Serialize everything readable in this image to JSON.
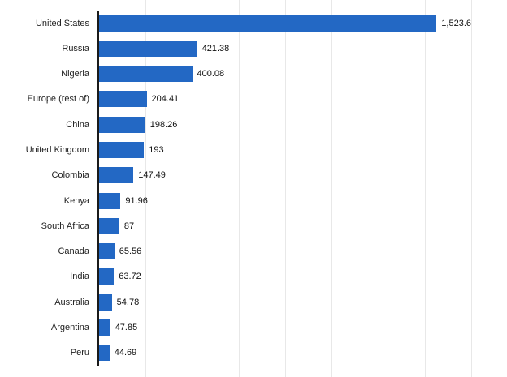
{
  "chart_data": {
    "type": "bar",
    "orientation": "horizontal",
    "categories": [
      "United States",
      "Russia",
      "Nigeria",
      "Europe (rest of)",
      "China",
      "United Kingdom",
      "Colombia",
      "Kenya",
      "South Africa",
      "Canada",
      "India",
      "Australia",
      "Argentina",
      "Peru"
    ],
    "values": [
      1523.6,
      421.38,
      400.08,
      204.41,
      198.26,
      193,
      147.49,
      91.96,
      87,
      65.56,
      63.72,
      54.78,
      47.85,
      44.69
    ],
    "value_labels": [
      "1,523.6",
      "421.38",
      "400.08",
      "204.41",
      "198.26",
      "193",
      "147.49",
      "91.96",
      "87",
      "65.56",
      "63.72",
      "54.78",
      "47.85",
      "44.69"
    ],
    "title": "",
    "xlabel": "",
    "ylabel": "",
    "xlim": [
      0,
      1600
    ],
    "grid_step": 200,
    "grid": "on",
    "legend": "none",
    "bar_color": "#2368c4",
    "axis_color": "#1a1a1a",
    "grid_color": "#e8e8e8"
  }
}
